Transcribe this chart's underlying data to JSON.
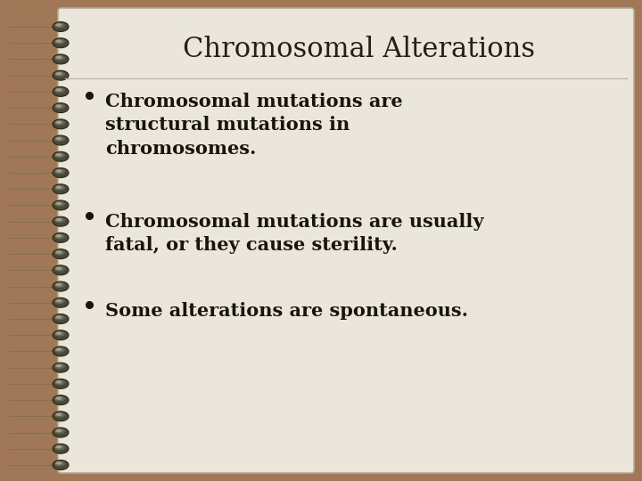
{
  "title": "Chromosomal Alterations",
  "bullet_points": [
    "Chromosomal mutations are\nstructural mutations in\nchromosomes.",
    "Chromosomal mutations are usually\nfatal, or they cause sterility.",
    "Some alterations are spontaneous."
  ],
  "bg_outer_color": "#a07858",
  "bg_page_color": "#eae6db",
  "title_color": "#2a1f0f",
  "text_color": "#1a1508",
  "title_fontsize": 22,
  "bullet_fontsize": 15,
  "line_color": "#c0b898",
  "spiral_count": 28
}
